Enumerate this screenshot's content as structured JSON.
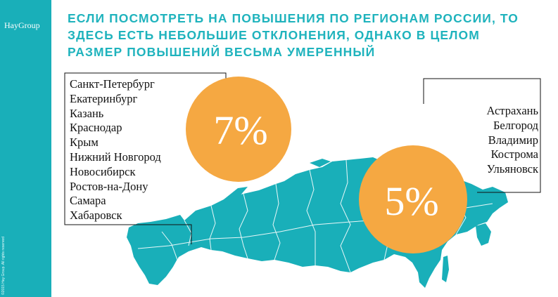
{
  "brand": {
    "logo_text": "HayGroup",
    "copyright": "©2015 Hay Group. All rights reserved"
  },
  "colors": {
    "teal": "#19afb9",
    "orange": "#f5a842",
    "title": "#1fb3bd"
  },
  "title": {
    "lines": [
      "ЕСЛИ ПОСМОТРЕТЬ НА ПОВЫШЕНИЯ ПО РЕГИОНАМ РОССИИ, ТО",
      "ЗДЕСЬ ЕСТЬ НЕБОЛЬШИЕ ОТКЛОНЕНИЯ, ОДНАКО В ЦЕЛОМ",
      "РАЗМЕР ПОВЫШЕНИЙ ВЕСЬМА УМЕРЕННЫЙ"
    ]
  },
  "group_high": {
    "percent": "7%",
    "cities": [
      "Санкт-Петербург",
      "Екатеринбург",
      "Казань",
      "Краснодар",
      "Крым",
      "Нижний Новгород",
      "Новосибирск",
      "Ростов-на-Дону",
      "Самара",
      "Хабаровск"
    ]
  },
  "group_low": {
    "percent": "5%",
    "cities": [
      "Астрахань",
      "Белгород",
      "Владимир",
      "Кострома",
      "Ульяновск"
    ]
  }
}
